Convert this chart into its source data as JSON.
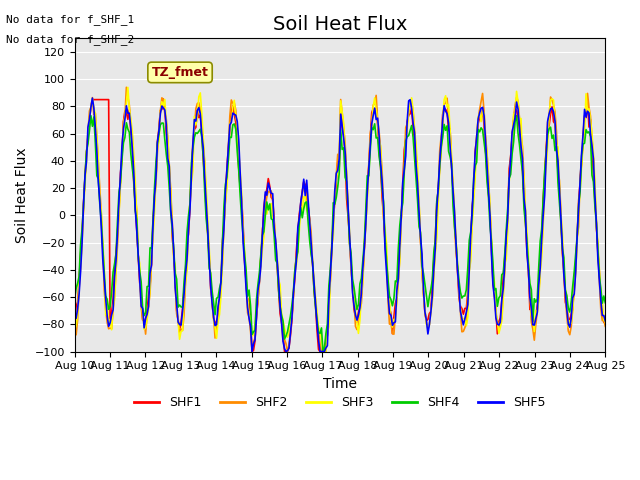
{
  "title": "Soil Heat Flux",
  "ylabel": "Soil Heat Flux",
  "xlabel": "Time",
  "ylim": [
    -100,
    130
  ],
  "xlim": [
    0,
    360
  ],
  "colors": {
    "SHF1": "#FF0000",
    "SHF2": "#FF8C00",
    "SHF3": "#FFFF00",
    "SHF4": "#00CC00",
    "SHF5": "#0000FF"
  },
  "legend_labels": [
    "SHF1",
    "SHF2",
    "SHF3",
    "SHF4",
    "SHF5"
  ],
  "xtick_labels": [
    "Aug 10",
    "Aug 11",
    "Aug 12",
    "Aug 13",
    "Aug 14",
    "Aug 15",
    "Aug 16",
    "Aug 17",
    "Aug 18",
    "Aug 19",
    "Aug 20",
    "Aug 21",
    "Aug 22",
    "Aug 23",
    "Aug 24",
    "Aug 25"
  ],
  "note_line1": "No data for f_SHF_1",
  "note_line2": "No data for f_SHF_2",
  "tz_label": "TZ_fmet",
  "background_color": "#E8E8E8",
  "title_fontsize": 14,
  "axis_fontsize": 10,
  "tick_fontsize": 8
}
